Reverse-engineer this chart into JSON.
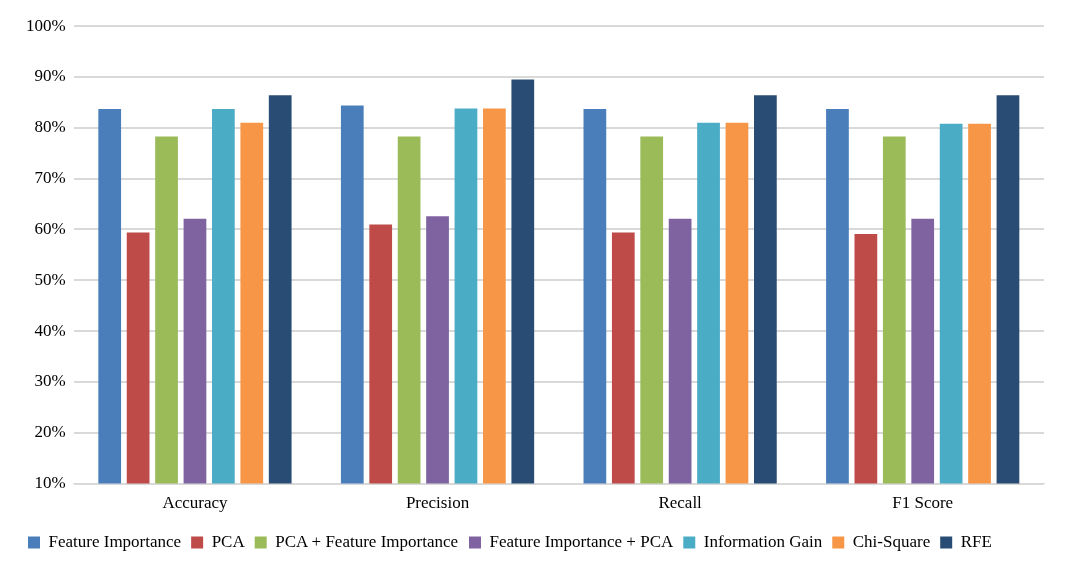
{
  "chart_data": {
    "type": "bar",
    "categories": [
      "Accuracy",
      "Precision",
      "Recall",
      "F1 Score"
    ],
    "series": [
      {
        "name": "Feature Importance",
        "color": "#4a7ebb",
        "values": [
          83.7,
          84.4,
          83.7,
          83.7
        ]
      },
      {
        "name": "PCA",
        "color": "#be4b48",
        "values": [
          59.4,
          61.0,
          59.4,
          59.1
        ]
      },
      {
        "name": "PCA + Feature Importance",
        "color": "#9bbb59",
        "values": [
          78.3,
          78.3,
          78.3,
          78.3
        ]
      },
      {
        "name": "Feature Importance + PCA",
        "color": "#7f63a1",
        "values": [
          62.1,
          62.6,
          62.1,
          62.1
        ]
      },
      {
        "name": "Information Gain",
        "color": "#4bacc6",
        "values": [
          83.7,
          83.8,
          81.0,
          80.8
        ]
      },
      {
        "name": "Chi-Square",
        "color": "#f79646",
        "values": [
          81.0,
          83.8,
          81.0,
          80.8
        ]
      },
      {
        "name": "RFE",
        "color": "#284c73",
        "values": [
          86.4,
          89.5,
          86.4,
          86.4
        ]
      }
    ],
    "ylim": [
      10,
      100
    ],
    "yticks": [
      {
        "value": 10,
        "label": "10%"
      },
      {
        "value": 20,
        "label": "20%"
      },
      {
        "value": 30,
        "label": "30%"
      },
      {
        "value": 40,
        "label": "40%"
      },
      {
        "value": 50,
        "label": "50%"
      },
      {
        "value": 60,
        "label": "60%"
      },
      {
        "value": 70,
        "label": "70%"
      },
      {
        "value": 80,
        "label": "80%"
      },
      {
        "value": 90,
        "label": "90%"
      },
      {
        "value": 100,
        "label": "100%"
      }
    ],
    "grid": "y",
    "legend": "bottom"
  }
}
